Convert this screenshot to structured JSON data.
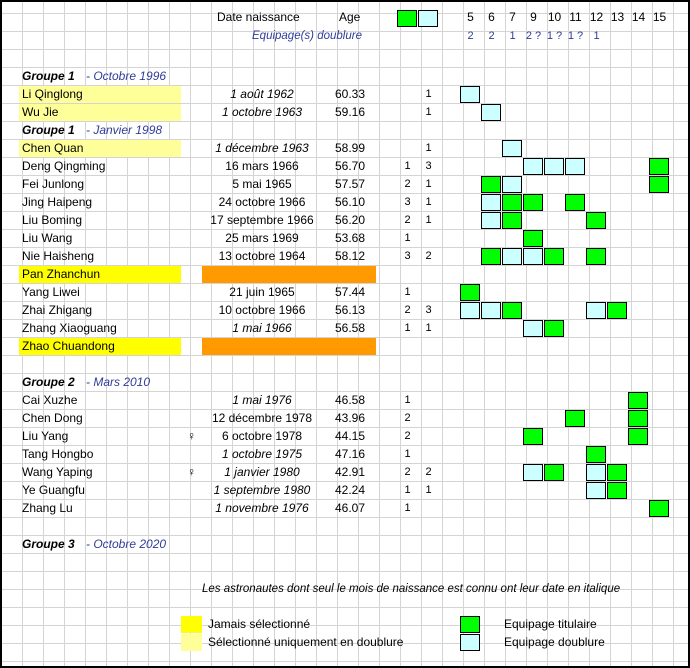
{
  "header": {
    "date_label": "Date naissance",
    "age_label": "Age",
    "equipage_label": "Equipage(s) doublure",
    "legend_green": "",
    "legend_blue": "",
    "missions": [
      "5",
      "6",
      "7",
      "9",
      "10",
      "11",
      "12",
      "13",
      "14",
      "15"
    ],
    "doublure_counts": [
      "2",
      "2",
      "1",
      "2 ?",
      "1 ?",
      "1 ?",
      "1"
    ]
  },
  "groups": [
    {
      "label": "Groupe 1",
      "date": "- Octobre 1996",
      "members": [
        {
          "name": "Li Qinglong",
          "birth": "1 août 1962",
          "italic": true,
          "age": "60.33",
          "titulaire": "",
          "doublure": "1",
          "highlight": "pale",
          "flights": [
            {
              "col": 0,
              "type": "blue"
            }
          ]
        },
        {
          "name": "Wu Jie",
          "birth": "1 octobre 1963",
          "italic": true,
          "age": "59.16",
          "titulaire": "",
          "doublure": "1",
          "highlight": "pale",
          "flights": [
            {
              "col": 1,
              "type": "blue"
            }
          ]
        }
      ]
    },
    {
      "label": "Groupe 1",
      "date": "- Janvier 1998",
      "members": [
        {
          "name": "Chen Quan",
          "birth": "1 décembre 1963",
          "italic": true,
          "age": "58.99",
          "titulaire": "",
          "doublure": "1",
          "highlight": "pale",
          "flights": [
            {
              "col": 2,
              "type": "blue"
            }
          ]
        },
        {
          "name": "Deng Qingming",
          "birth": "16 mars 1966",
          "italic": false,
          "age": "56.70",
          "titulaire": "1",
          "doublure": "3",
          "highlight": "",
          "flights": [
            {
              "col": 3,
              "type": "blue"
            },
            {
              "col": 4,
              "type": "blue"
            },
            {
              "col": 5,
              "type": "blue"
            },
            {
              "col": 9,
              "type": "green"
            }
          ]
        },
        {
          "name": "Fei Junlong",
          "birth": "5 mai 1965",
          "italic": false,
          "age": "57.57",
          "titulaire": "2",
          "doublure": "1",
          "highlight": "",
          "flights": [
            {
              "col": 1,
              "type": "green"
            },
            {
              "col": 2,
              "type": "blue"
            },
            {
              "col": 9,
              "type": "green"
            }
          ]
        },
        {
          "name": "Jing Haipeng",
          "birth": "24 octobre 1966",
          "italic": false,
          "age": "56.10",
          "titulaire": "3",
          "doublure": "1",
          "highlight": "",
          "flights": [
            {
              "col": 1,
              "type": "blue"
            },
            {
              "col": 2,
              "type": "green"
            },
            {
              "col": 3,
              "type": "green"
            },
            {
              "col": 5,
              "type": "green"
            }
          ]
        },
        {
          "name": "Liu Boming",
          "birth": "17 septembre 1966",
          "italic": false,
          "age": "56.20",
          "titulaire": "2",
          "doublure": "1",
          "highlight": "",
          "flights": [
            {
              "col": 1,
              "type": "blue"
            },
            {
              "col": 2,
              "type": "green"
            },
            {
              "col": 6,
              "type": "green"
            }
          ]
        },
        {
          "name": "Liu Wang",
          "birth": "25 mars 1969",
          "italic": false,
          "age": "53.68",
          "titulaire": "1",
          "doublure": "",
          "highlight": "",
          "flights": [
            {
              "col": 3,
              "type": "green"
            }
          ]
        },
        {
          "name": "Nie Haisheng",
          "birth": "13 octobre 1964",
          "italic": false,
          "age": "58.12",
          "titulaire": "3",
          "doublure": "2",
          "highlight": "",
          "flights": [
            {
              "col": 1,
              "type": "green"
            },
            {
              "col": 2,
              "type": "blue"
            },
            {
              "col": 3,
              "type": "blue"
            },
            {
              "col": 4,
              "type": "green"
            },
            {
              "col": 6,
              "type": "green"
            }
          ]
        },
        {
          "name": "Pan Zhanchun",
          "birth": "",
          "italic": false,
          "age": "",
          "titulaire": "",
          "doublure": "",
          "highlight": "yellow",
          "flights": []
        },
        {
          "name": "Yang Liwei",
          "birth": "21 juin 1965",
          "italic": false,
          "age": "57.44",
          "titulaire": "1",
          "doublure": "",
          "highlight": "",
          "flights": [
            {
              "col": 0,
              "type": "green"
            }
          ]
        },
        {
          "name": "Zhai Zhigang",
          "birth": "10 octobre 1966",
          "italic": false,
          "age": "56.13",
          "titulaire": "2",
          "doublure": "3",
          "highlight": "",
          "flights": [
            {
              "col": 0,
              "type": "blue"
            },
            {
              "col": 1,
              "type": "blue"
            },
            {
              "col": 2,
              "type": "green"
            },
            {
              "col": 6,
              "type": "blue"
            },
            {
              "col": 7,
              "type": "green"
            }
          ]
        },
        {
          "name": "Zhang Xiaoguang",
          "birth": "1 mai 1966",
          "italic": true,
          "age": "56.58",
          "titulaire": "1",
          "doublure": "1",
          "highlight": "",
          "flights": [
            {
              "col": 3,
              "type": "blue"
            },
            {
              "col": 4,
              "type": "green"
            }
          ]
        },
        {
          "name": "Zhao Chuandong",
          "birth": "",
          "italic": false,
          "age": "",
          "titulaire": "",
          "doublure": "",
          "highlight": "yellow",
          "flights": []
        }
      ]
    },
    {
      "label": "Groupe 2",
      "date": "- Mars 2010",
      "members": [
        {
          "name": "Cai Xuzhe",
          "birth": "1 mai 1976",
          "italic": true,
          "age": "46.58",
          "titulaire": "1",
          "doublure": "",
          "highlight": "",
          "gender": "",
          "flights": [
            {
              "col": 8,
              "type": "green"
            }
          ]
        },
        {
          "name": "Chen Dong",
          "birth": "12 décembre 1978",
          "italic": false,
          "age": "43.96",
          "titulaire": "2",
          "doublure": "",
          "highlight": "",
          "gender": "",
          "flights": [
            {
              "col": 5,
              "type": "green"
            },
            {
              "col": 8,
              "type": "green"
            }
          ]
        },
        {
          "name": "Liu Yang",
          "birth": "6 octobre 1978",
          "italic": false,
          "age": "44.15",
          "titulaire": "2",
          "doublure": "",
          "highlight": "",
          "gender": "♀",
          "flights": [
            {
              "col": 3,
              "type": "green"
            },
            {
              "col": 8,
              "type": "green"
            }
          ]
        },
        {
          "name": "Tang Hongbo",
          "birth": "1 octobre 1975",
          "italic": true,
          "age": "47.16",
          "titulaire": "1",
          "doublure": "",
          "highlight": "",
          "gender": "",
          "flights": [
            {
              "col": 6,
              "type": "green"
            }
          ]
        },
        {
          "name": "Wang Yaping",
          "birth": "1 janvier 1980",
          "italic": true,
          "age": "42.91",
          "titulaire": "2",
          "doublure": "2",
          "highlight": "",
          "gender": "♀",
          "flights": [
            {
              "col": 3,
              "type": "blue"
            },
            {
              "col": 4,
              "type": "green"
            },
            {
              "col": 6,
              "type": "blue"
            },
            {
              "col": 7,
              "type": "green"
            }
          ]
        },
        {
          "name": "Ye Guangfu",
          "birth": "1 septembre 1980",
          "italic": true,
          "age": "42.24",
          "titulaire": "1",
          "doublure": "1",
          "highlight": "",
          "gender": "",
          "flights": [
            {
              "col": 6,
              "type": "blue"
            },
            {
              "col": 7,
              "type": "green"
            }
          ]
        },
        {
          "name": "Zhang Lu",
          "birth": "1 novembre 1976",
          "italic": true,
          "age": "46.07",
          "titulaire": "1",
          "doublure": "",
          "highlight": "",
          "gender": "",
          "flights": [
            {
              "col": 9,
              "type": "green"
            }
          ]
        }
      ]
    },
    {
      "label": "Groupe 3",
      "date": "- Octobre 2020",
      "members": []
    }
  ],
  "note": "Les astronautes dont seul le mois de naissance est connu ont leur date en italique",
  "legend": {
    "never_selected": "Jamais sélectionné",
    "only_doublure": "Sélectionné uniquement en doublure",
    "titulaire": "Equipage titulaire",
    "doublure": "Equipage doublure"
  },
  "colors": {
    "green": "#00ff00",
    "pale_blue": "#ccffff",
    "yellow": "#ffff00",
    "pale_yellow": "#ffff99",
    "orange": "#ff9a00",
    "group_date_blue": "#2f3c98"
  }
}
